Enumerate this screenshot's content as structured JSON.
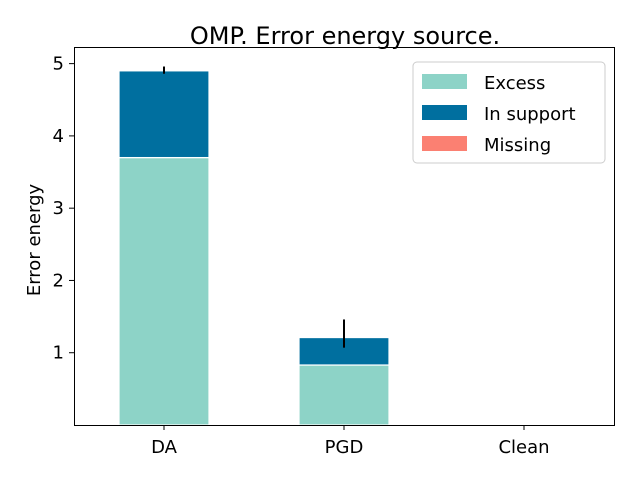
{
  "chart_data": {
    "type": "bar",
    "stacked": true,
    "title": "OMP. Error energy source.",
    "xlabel": "",
    "ylabel": "Error energy",
    "categories": [
      "DA",
      "PGD",
      "Clean"
    ],
    "series": [
      {
        "name": "Excess",
        "color": "#8dd3c7",
        "values": [
          3.7,
          0.83,
          0
        ]
      },
      {
        "name": "In support",
        "color": "#006f9f",
        "values": [
          1.2,
          0.38,
          0
        ]
      },
      {
        "name": "Missing",
        "color": "#fb8072",
        "values": [
          0,
          0,
          0
        ]
      }
    ],
    "error_bars": [
      {
        "category": "DA",
        "low": 4.86,
        "high": 4.96
      },
      {
        "category": "PGD",
        "low": 1.07,
        "high": 1.46
      }
    ],
    "yticks": [
      1,
      2,
      3,
      4,
      5
    ],
    "ylim": [
      0,
      5.23
    ],
    "grid": false,
    "legend_position": "top-right"
  }
}
